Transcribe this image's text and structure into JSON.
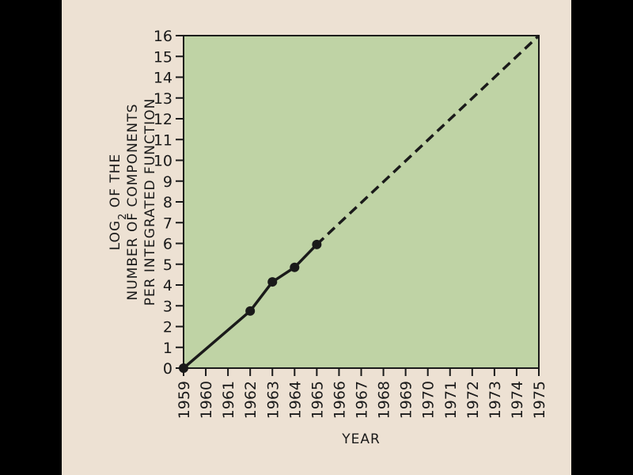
{
  "colors": {
    "background": "#000000",
    "paper": "#ede1d3",
    "plot_fill": "#bfd3a5",
    "ink": "#1a1a1a"
  },
  "chart_data": {
    "type": "line",
    "xlabel": "YEAR",
    "ylabel_lines": [
      "LOG2 OF THE",
      "NUMBER OF COMPONENTS",
      "PER INTEGRATED FUNCTION"
    ],
    "ylabel_sub": "2",
    "xlim": [
      1959,
      1975
    ],
    "ylim": [
      0,
      16
    ],
    "x_ticks": [
      1959,
      1960,
      1961,
      1962,
      1963,
      1964,
      1965,
      1966,
      1967,
      1968,
      1969,
      1970,
      1971,
      1972,
      1973,
      1974,
      1975
    ],
    "y_ticks": [
      0,
      1,
      2,
      3,
      4,
      5,
      6,
      7,
      8,
      9,
      10,
      11,
      12,
      13,
      14,
      15,
      16
    ],
    "grid": false,
    "series": [
      {
        "style": "solid",
        "markers": true,
        "points": [
          {
            "x": 1959,
            "y": 0
          },
          {
            "x": 1962,
            "y": 2.75
          },
          {
            "x": 1963,
            "y": 4.15
          },
          {
            "x": 1964,
            "y": 4.85
          },
          {
            "x": 1965,
            "y": 5.95
          }
        ]
      },
      {
        "style": "dashed",
        "markers": false,
        "points": [
          {
            "x": 1965,
            "y": 5.95
          },
          {
            "x": 1975,
            "y": 16
          }
        ]
      }
    ]
  }
}
